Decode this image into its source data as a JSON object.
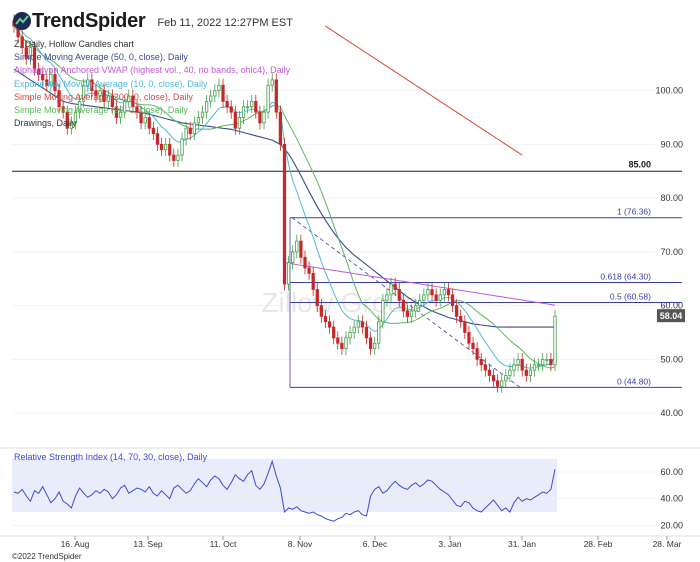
{
  "header": {
    "brand": "TrendSpider",
    "date": "Feb 11, 2022 12:27PM EST"
  },
  "legend": [
    {
      "text": "Z, Daily, Hollow Candles chart",
      "color": "#333333"
    },
    {
      "text": "Simple Moving Average (50, 0, close), Daily",
      "color": "#3c4a8a"
    },
    {
      "text": "Alphaglyph Anchored VWAP (highest vol., 40, no bands, ohlc4), Daily",
      "color": "#c05ad1"
    },
    {
      "text": "Exponential Moving Average (10, 0, close), Daily",
      "color": "#4fb8d8"
    },
    {
      "text": "Simple Moving Average (200, 0, close), Daily",
      "color": "#d9483b"
    },
    {
      "text": "Simple Moving Average (20, 0, close), Daily",
      "color": "#5cb85c"
    },
    {
      "text": "Drawings, Daily",
      "color": "#333333"
    }
  ],
  "rsi_label": "Relative Strength Index (14, 70, 30, close), Daily",
  "watermark": "Zillow Group",
  "copyright": "©2022 TrendSpider",
  "chart_data": {
    "type": "candlestick",
    "price_axis": {
      "min": 35,
      "max": 115,
      "ticks": [
        "100.00",
        "90.00",
        "80.00",
        "70.00",
        "60.00",
        "50.00",
        "40.00"
      ]
    },
    "x_ticks": [
      "16. Aug",
      "13. Sep",
      "11. Oct",
      "8. Nov",
      "6. Dec",
      "3. Jan",
      "31. Jan",
      "28. Feb",
      "28. Mar"
    ],
    "last_price": {
      "label": "58.04",
      "value": 58.04
    },
    "horizontal_level": {
      "label": "85.00",
      "value": 85.0
    },
    "fibonacci": [
      {
        "label": "1 (76.36)",
        "value": 76.36
      },
      {
        "label": "0.618 (64.30)",
        "value": 64.3
      },
      {
        "label": "0.5 (60.58)",
        "value": 60.58
      },
      {
        "label": "0 (44.80)",
        "value": 44.8
      }
    ],
    "close": [
      112,
      110,
      108,
      106,
      108,
      104,
      103,
      102,
      101,
      103,
      100,
      97,
      96,
      93,
      94,
      96,
      98,
      101,
      102,
      100,
      99,
      100,
      98,
      99,
      97,
      95,
      96,
      98,
      99,
      97,
      96,
      94,
      95,
      93,
      92,
      90,
      89,
      90,
      88,
      87,
      88,
      91,
      93,
      92,
      94,
      95,
      96,
      98,
      99,
      100,
      101,
      98,
      97,
      96,
      93,
      95,
      97,
      97,
      98,
      96,
      94,
      96,
      101,
      102,
      96,
      90,
      64,
      68,
      70,
      72,
      69,
      67,
      66,
      63,
      60,
      58,
      57,
      56,
      54,
      53,
      52,
      54,
      55,
      56,
      57,
      56,
      54,
      52,
      53,
      57,
      61,
      62,
      64,
      63,
      61,
      59,
      58,
      59,
      60,
      61,
      62,
      63,
      62,
      61,
      62,
      63,
      62,
      60,
      58,
      57,
      55,
      53,
      52,
      50,
      49,
      48,
      47,
      46,
      45,
      46,
      47,
      48,
      49,
      50,
      48,
      47,
      48,
      49,
      49,
      50,
      50,
      49,
      58.04
    ],
    "sma50": [
      104,
      103.5,
      103,
      102.5,
      102,
      101.5,
      101,
      100.5,
      100,
      99.5,
      99,
      98.5,
      98,
      97.8,
      97.6,
      97.5,
      97.4,
      97.3,
      97.2,
      97.1,
      97,
      96.9,
      96.8,
      96.7,
      96.6,
      96.5,
      96.4,
      96.3,
      96.2,
      96.1,
      96,
      95.9,
      95.8,
      95.6,
      95.4,
      95.2,
      95,
      94.8,
      94.6,
      94.4,
      94.2,
      94,
      93.9,
      93.8,
      93.7,
      93.6,
      93.5,
      93.4,
      93.3,
      93.2,
      93.1,
      93,
      92.9,
      92.8,
      92.6,
      92.4,
      92.2,
      92,
      91.8,
      91.6,
      91.4,
      91.2,
      91,
      90.8,
      90.4,
      90,
      89.2,
      88.2,
      87,
      85.6,
      84.2,
      82.7,
      81.2,
      79.8,
      78.4,
      77.1,
      75.9,
      74.7,
      73.6,
      72.6,
      71.7,
      70.8,
      70.1,
      69.4,
      68.8,
      68.2,
      67.6,
      67,
      66.4,
      65.8,
      65.2,
      64.6,
      64,
      63.4,
      62.8,
      62.2,
      61.6,
      61.1,
      60.6,
      60.2,
      59.8,
      59.4,
      59,
      58.7,
      58.4,
      58.1,
      57.8,
      57.6,
      57.4,
      57.2,
      57,
      56.8,
      56.6,
      56.5,
      56.4,
      56.3,
      56.2,
      56.1,
      56,
      56,
      56,
      56,
      56,
      56,
      56,
      56,
      56,
      56,
      56,
      56,
      56,
      56,
      56
    ],
    "sma200": [
      null,
      null,
      null,
      null,
      null,
      null,
      null,
      null,
      null,
      null,
      null,
      null,
      null,
      null,
      null,
      null,
      null,
      null,
      null,
      null,
      null,
      null,
      null,
      null,
      null,
      null,
      null,
      null,
      null,
      null,
      null,
      null,
      null,
      null,
      null,
      null,
      null,
      null,
      null,
      null,
      null,
      null,
      null,
      null,
      null,
      null,
      null,
      null,
      null,
      null,
      null,
      null,
      null,
      null,
      null,
      null,
      null,
      null,
      null,
      null,
      null,
      null,
      null,
      null,
      null,
      null,
      null,
      null,
      null,
      null,
      null,
      null,
      null,
      null,
      null,
      null,
      112,
      111.5,
      111,
      110.5,
      110,
      109.5,
      109,
      108.5,
      108,
      107.5,
      107,
      106.5,
      106,
      105.5,
      105,
      104.5,
      104,
      103.5,
      103,
      102.5,
      102,
      101.5,
      101,
      100.5,
      100,
      99.5,
      99,
      98.5,
      98,
      97.5,
      97,
      96.5,
      96,
      95.5,
      95,
      94.5,
      94,
      93.5,
      93,
      92.5,
      92,
      91.5,
      91,
      90.5,
      90,
      89.5,
      89,
      88.5,
      88,
      null,
      null
    ],
    "rsi": {
      "ticks": [
        "60.00",
        "40.00",
        "20.00"
      ],
      "min": 15,
      "max": 75,
      "upper": 70,
      "lower": 30,
      "values": [
        45,
        44,
        47,
        42,
        38,
        46,
        44,
        49,
        43,
        37,
        40,
        45,
        38,
        36,
        33,
        42,
        48,
        44,
        41,
        43,
        46,
        44,
        47,
        45,
        40,
        43,
        48,
        50,
        44,
        46,
        48,
        47,
        45,
        49,
        44,
        42,
        46,
        43,
        40,
        48,
        50,
        47,
        44,
        46,
        51,
        55,
        52,
        49,
        54,
        57,
        55,
        50,
        47,
        52,
        58,
        55,
        53,
        58,
        61,
        50,
        47,
        51,
        59,
        68,
        57,
        48,
        30,
        33,
        32,
        34,
        31,
        30,
        29,
        30,
        28,
        27,
        25,
        24,
        23,
        25,
        26,
        29,
        28,
        30,
        31,
        28,
        27,
        42,
        47,
        49,
        44,
        46,
        50,
        53,
        50,
        48,
        47,
        50,
        52,
        49,
        51,
        54,
        53,
        50,
        47,
        45,
        43,
        39,
        35,
        34,
        38,
        37,
        33,
        31,
        30,
        33,
        36,
        39,
        35,
        31,
        33,
        30,
        37,
        41,
        38,
        40,
        39,
        41,
        43,
        45,
        44,
        47,
        62
      ]
    }
  }
}
